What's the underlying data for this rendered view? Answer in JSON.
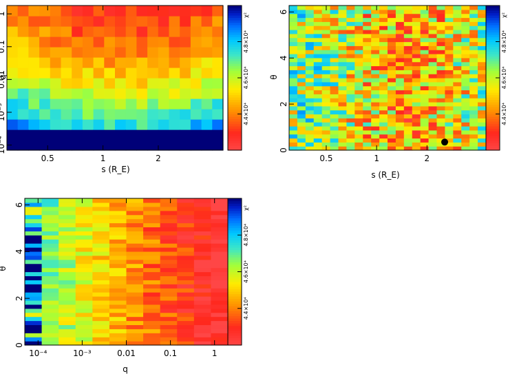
{
  "chart_data": [
    {
      "type": "heatmap",
      "xlabel": "s (R_E)",
      "ylabel": "q",
      "xscale": "log",
      "yscale": "log",
      "xlim": [
        0.3,
        4.5
      ],
      "ylim": [
        7e-05,
        1.8
      ],
      "xticks": [
        {
          "v": 0.5,
          "label": "0.5"
        },
        {
          "v": 1,
          "label": "1"
        },
        {
          "v": 2,
          "label": "2"
        }
      ],
      "yticks": [
        {
          "v": 0.0001,
          "label": "10⁻⁴"
        },
        {
          "v": 0.001,
          "label": "10⁻³"
        },
        {
          "v": 0.01,
          "label": "0.01"
        },
        {
          "v": 0.1,
          "label": "0.1"
        },
        {
          "v": 1,
          "label": "1"
        }
      ],
      "nx": 20,
      "ny": 14,
      "colorbar": {
        "label": "χ²",
        "min": 42000.0,
        "max": 50000.0,
        "ticks": [
          {
            "v": 44000,
            "label": "4.4×10⁴"
          },
          {
            "v": 46000,
            "label": "4.6×10⁴"
          },
          {
            "v": 48000,
            "label": "4.8×10⁴"
          }
        ]
      },
      "markers": []
    },
    {
      "type": "heatmap",
      "xlabel": "s (R_E)",
      "ylabel": "θ",
      "xscale": "log",
      "yscale": "linear",
      "xlim": [
        0.3,
        4.5
      ],
      "ylim": [
        0,
        6.28
      ],
      "xticks": [
        {
          "v": 0.5,
          "label": "0.5"
        },
        {
          "v": 1,
          "label": "1"
        },
        {
          "v": 2,
          "label": "2"
        }
      ],
      "yticks": [
        {
          "v": 0,
          "label": "0"
        },
        {
          "v": 2,
          "label": "2"
        },
        {
          "v": 4,
          "label": "4"
        },
        {
          "v": 6,
          "label": "6"
        }
      ],
      "nx": 24,
      "ny": 36,
      "colorbar": {
        "label": "χ²",
        "min": 42000.0,
        "max": 50000.0,
        "ticks": [
          {
            "v": 44000,
            "label": "4.4×10⁴"
          },
          {
            "v": 46000,
            "label": "4.6×10⁴"
          },
          {
            "v": 48000,
            "label": "4.8×10⁴"
          }
        ]
      },
      "markers": [
        {
          "x": 2.55,
          "y": 0.35
        }
      ]
    },
    {
      "type": "heatmap",
      "xlabel": "q",
      "ylabel": "θ",
      "xscale": "log",
      "yscale": "linear",
      "xlim": [
        5e-05,
        2.0
      ],
      "ylim": [
        0,
        6.28
      ],
      "xticks": [
        {
          "v": 0.0001,
          "label": "10⁻⁴"
        },
        {
          "v": 0.001,
          "label": "10⁻³"
        },
        {
          "v": 0.01,
          "label": "0.01"
        },
        {
          "v": 0.1,
          "label": "0.1"
        },
        {
          "v": 1,
          "label": "1"
        }
      ],
      "yticks": [
        {
          "v": 0,
          "label": "0"
        },
        {
          "v": 2,
          "label": "2"
        },
        {
          "v": 4,
          "label": "4"
        },
        {
          "v": 6,
          "label": "6"
        }
      ],
      "nx": 12,
      "ny": 36,
      "colorbar": {
        "label": "χ²",
        "min": 42000.0,
        "max": 50000.0,
        "ticks": [
          {
            "v": 44000,
            "label": "4.4×10⁴"
          },
          {
            "v": 46000,
            "label": "4.6×10⁴"
          },
          {
            "v": 48000,
            "label": "4.8×10⁴"
          }
        ]
      },
      "markers": []
    }
  ]
}
